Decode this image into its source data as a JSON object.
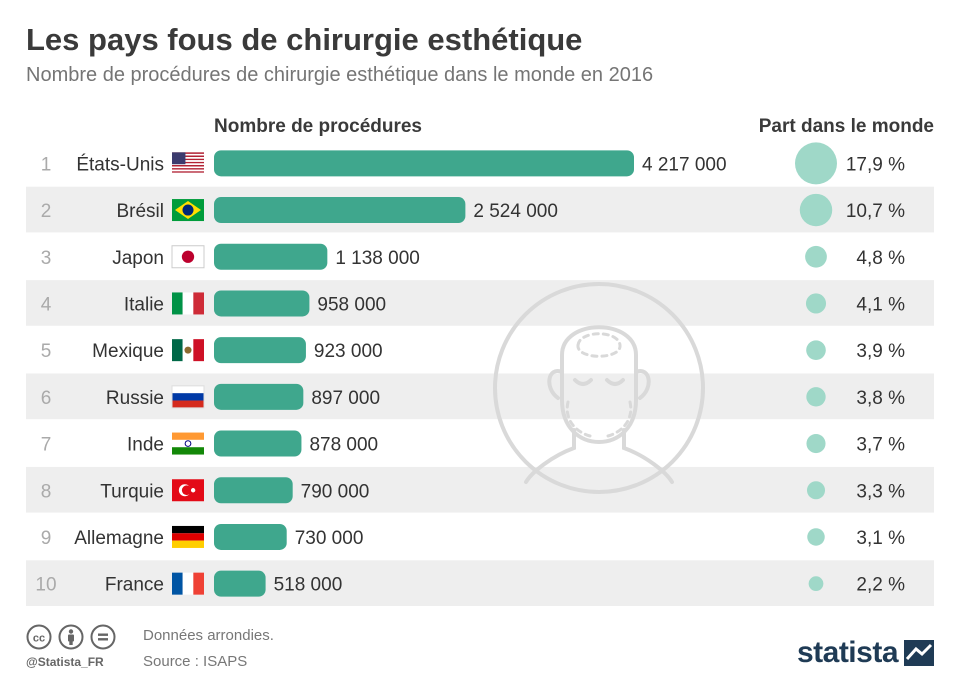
{
  "header": {
    "title": "Les pays fous de chirurgie esthétique",
    "subtitle": "Nombre de procédures de chirurgie esthétique dans le monde en 2016"
  },
  "columns": {
    "procedures": "Nombre de procédures",
    "share": "Part dans le monde"
  },
  "footer": {
    "note": "Données arrondies.",
    "source": "Source : ISAPS",
    "handle": "@Statista_FR",
    "brand": "statista"
  },
  "colors": {
    "bar": "#3fa78d",
    "bubble": "#9fd8c8",
    "stripe": "#eeeeee",
    "rank": "#aaaaaa",
    "illustration": "#d9d9d9"
  },
  "icons": [
    "creative-commons-icon",
    "attribution-icon",
    "no-derivatives-icon",
    "face-illustration",
    "statista-logo-icon"
  ],
  "chart_data": {
    "type": "bar",
    "orientation": "horizontal",
    "categories": [
      "États-Unis",
      "Brésil",
      "Japon",
      "Italie",
      "Mexique",
      "Russie",
      "Inde",
      "Turquie",
      "Allemagne",
      "France"
    ],
    "ranks": [
      "1",
      "2",
      "3",
      "4",
      "5",
      "6",
      "7",
      "8",
      "9",
      "10"
    ],
    "flags": [
      "us",
      "br",
      "jp",
      "it",
      "mx",
      "ru",
      "in",
      "tr",
      "de",
      "fr"
    ],
    "series": [
      {
        "name": "Nombre de procédures",
        "values": [
          4217000,
          2524000,
          1138000,
          958000,
          923000,
          897000,
          878000,
          790000,
          730000,
          518000
        ],
        "labels": [
          "4 217 000",
          "2 524 000",
          "1 138 000",
          "958 000",
          "923 000",
          "897 000",
          "878 000",
          "790 000",
          "730 000",
          "518 000"
        ]
      },
      {
        "name": "Part dans le monde",
        "values": [
          17.9,
          10.7,
          4.8,
          4.1,
          3.9,
          3.8,
          3.7,
          3.3,
          3.1,
          2.2
        ],
        "labels": [
          "17,9 %",
          "10,7 %",
          "4,8 %",
          "4,1 %",
          "3,9 %",
          "3,8 %",
          "3,7 %",
          "3,3 %",
          "3,1 %",
          "2,2 %"
        ]
      }
    ],
    "xlim": [
      0,
      4217000
    ],
    "grid": false,
    "legend": "none"
  }
}
